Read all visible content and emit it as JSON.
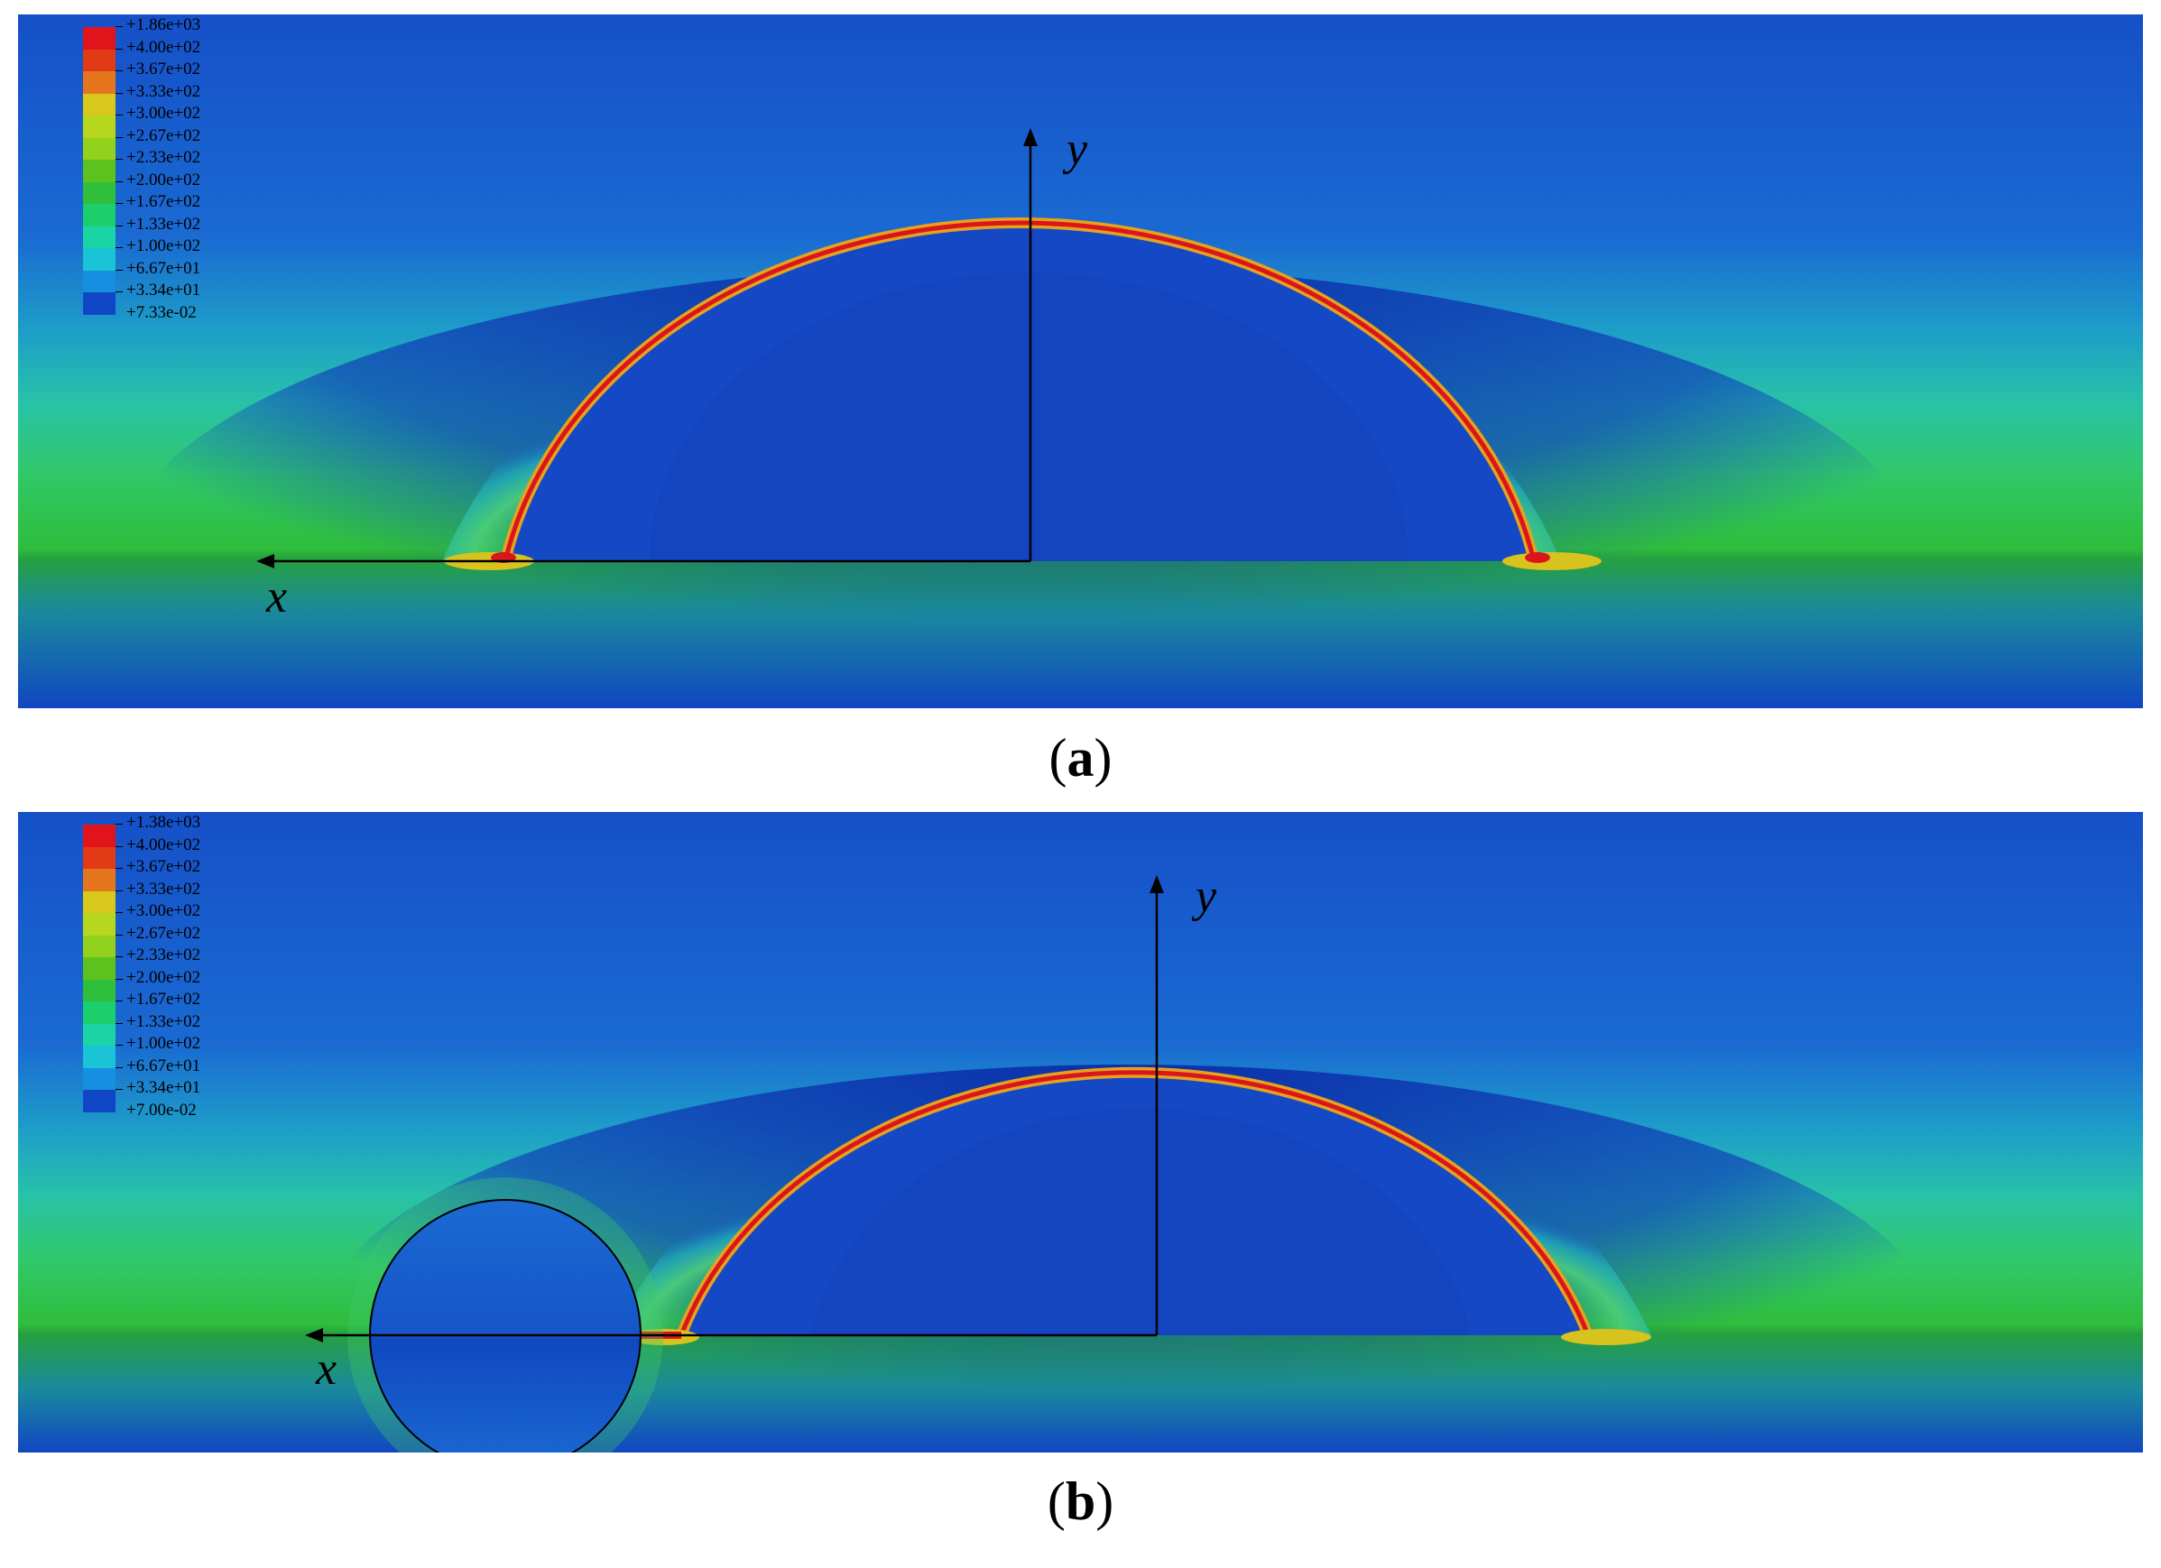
{
  "panels": [
    {
      "id": "a",
      "caption_letter": "a",
      "axis_x_label": "x",
      "axis_y_label": "y",
      "legend": [
        "+1.86e+03",
        "+4.00e+02",
        "+3.67e+02",
        "+3.33e+02",
        "+3.00e+02",
        "+2.67e+02",
        "+2.33e+02",
        "+2.00e+02",
        "+1.67e+02",
        "+1.33e+02",
        "+1.00e+02",
        "+6.67e+01",
        "+3.34e+01",
        "+7.33e-02"
      ],
      "has_circle": false
    },
    {
      "id": "b",
      "caption_letter": "b",
      "axis_x_label": "x",
      "axis_y_label": "y",
      "legend": [
        "+1.38e+03",
        "+4.00e+02",
        "+3.67e+02",
        "+3.33e+02",
        "+3.00e+02",
        "+2.67e+02",
        "+2.33e+02",
        "+2.00e+02",
        "+1.67e+02",
        "+1.33e+02",
        "+1.00e+02",
        "+6.67e+01",
        "+3.34e+01",
        "+7.00e-02"
      ],
      "has_circle": true
    }
  ],
  "legend_colors": [
    "#e2141b",
    "#e23a14",
    "#e6761e",
    "#d9c81c",
    "#b7d61e",
    "#93d21c",
    "#5cc21e",
    "#2fbf3a",
    "#1ccf6c",
    "#1bd4a6",
    "#1ac3d6",
    "#168fe0",
    "#1046c6"
  ]
}
